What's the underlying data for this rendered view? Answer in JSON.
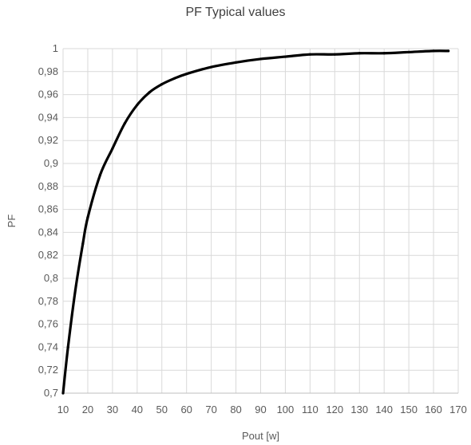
{
  "chart_data": {
    "type": "line",
    "title": "PF Typical values",
    "xlabel": "Pout [w]",
    "ylabel": "PF",
    "xlim": [
      10,
      170
    ],
    "ylim": [
      0.7,
      1.0
    ],
    "xticks": [
      10,
      20,
      30,
      40,
      50,
      60,
      70,
      80,
      90,
      100,
      110,
      120,
      130,
      140,
      150,
      160,
      170
    ],
    "xtick_labels": [
      "10",
      "20",
      "30",
      "40",
      "50",
      "60",
      "70",
      "80",
      "90",
      "100",
      "110",
      "120",
      "130",
      "140",
      "150",
      "160",
      "170"
    ],
    "yticks": [
      0.7,
      0.72,
      0.74,
      0.76,
      0.78,
      0.8,
      0.82,
      0.84,
      0.86,
      0.88,
      0.9,
      0.92,
      0.94,
      0.96,
      0.98,
      1.0
    ],
    "ytick_labels": [
      "0,7",
      "0,72",
      "0,74",
      "0,76",
      "0,78",
      "0,8",
      "0,82",
      "0,84",
      "0,86",
      "0,88",
      "0,9",
      "0,92",
      "0,94",
      "0,96",
      "0,98",
      "1"
    ],
    "grid": true,
    "legend": "none",
    "series": [
      {
        "color": "#000000",
        "x": [
          10,
          12,
          15,
          18,
          20,
          25,
          30,
          35,
          40,
          45,
          50,
          55,
          60,
          70,
          80,
          90,
          100,
          110,
          120,
          130,
          140,
          150,
          160,
          166
        ],
        "y": [
          0.7,
          0.74,
          0.79,
          0.83,
          0.853,
          0.89,
          0.913,
          0.935,
          0.951,
          0.962,
          0.969,
          0.974,
          0.978,
          0.984,
          0.988,
          0.991,
          0.993,
          0.995,
          0.995,
          0.996,
          0.996,
          0.997,
          0.998,
          0.998
        ]
      }
    ]
  }
}
